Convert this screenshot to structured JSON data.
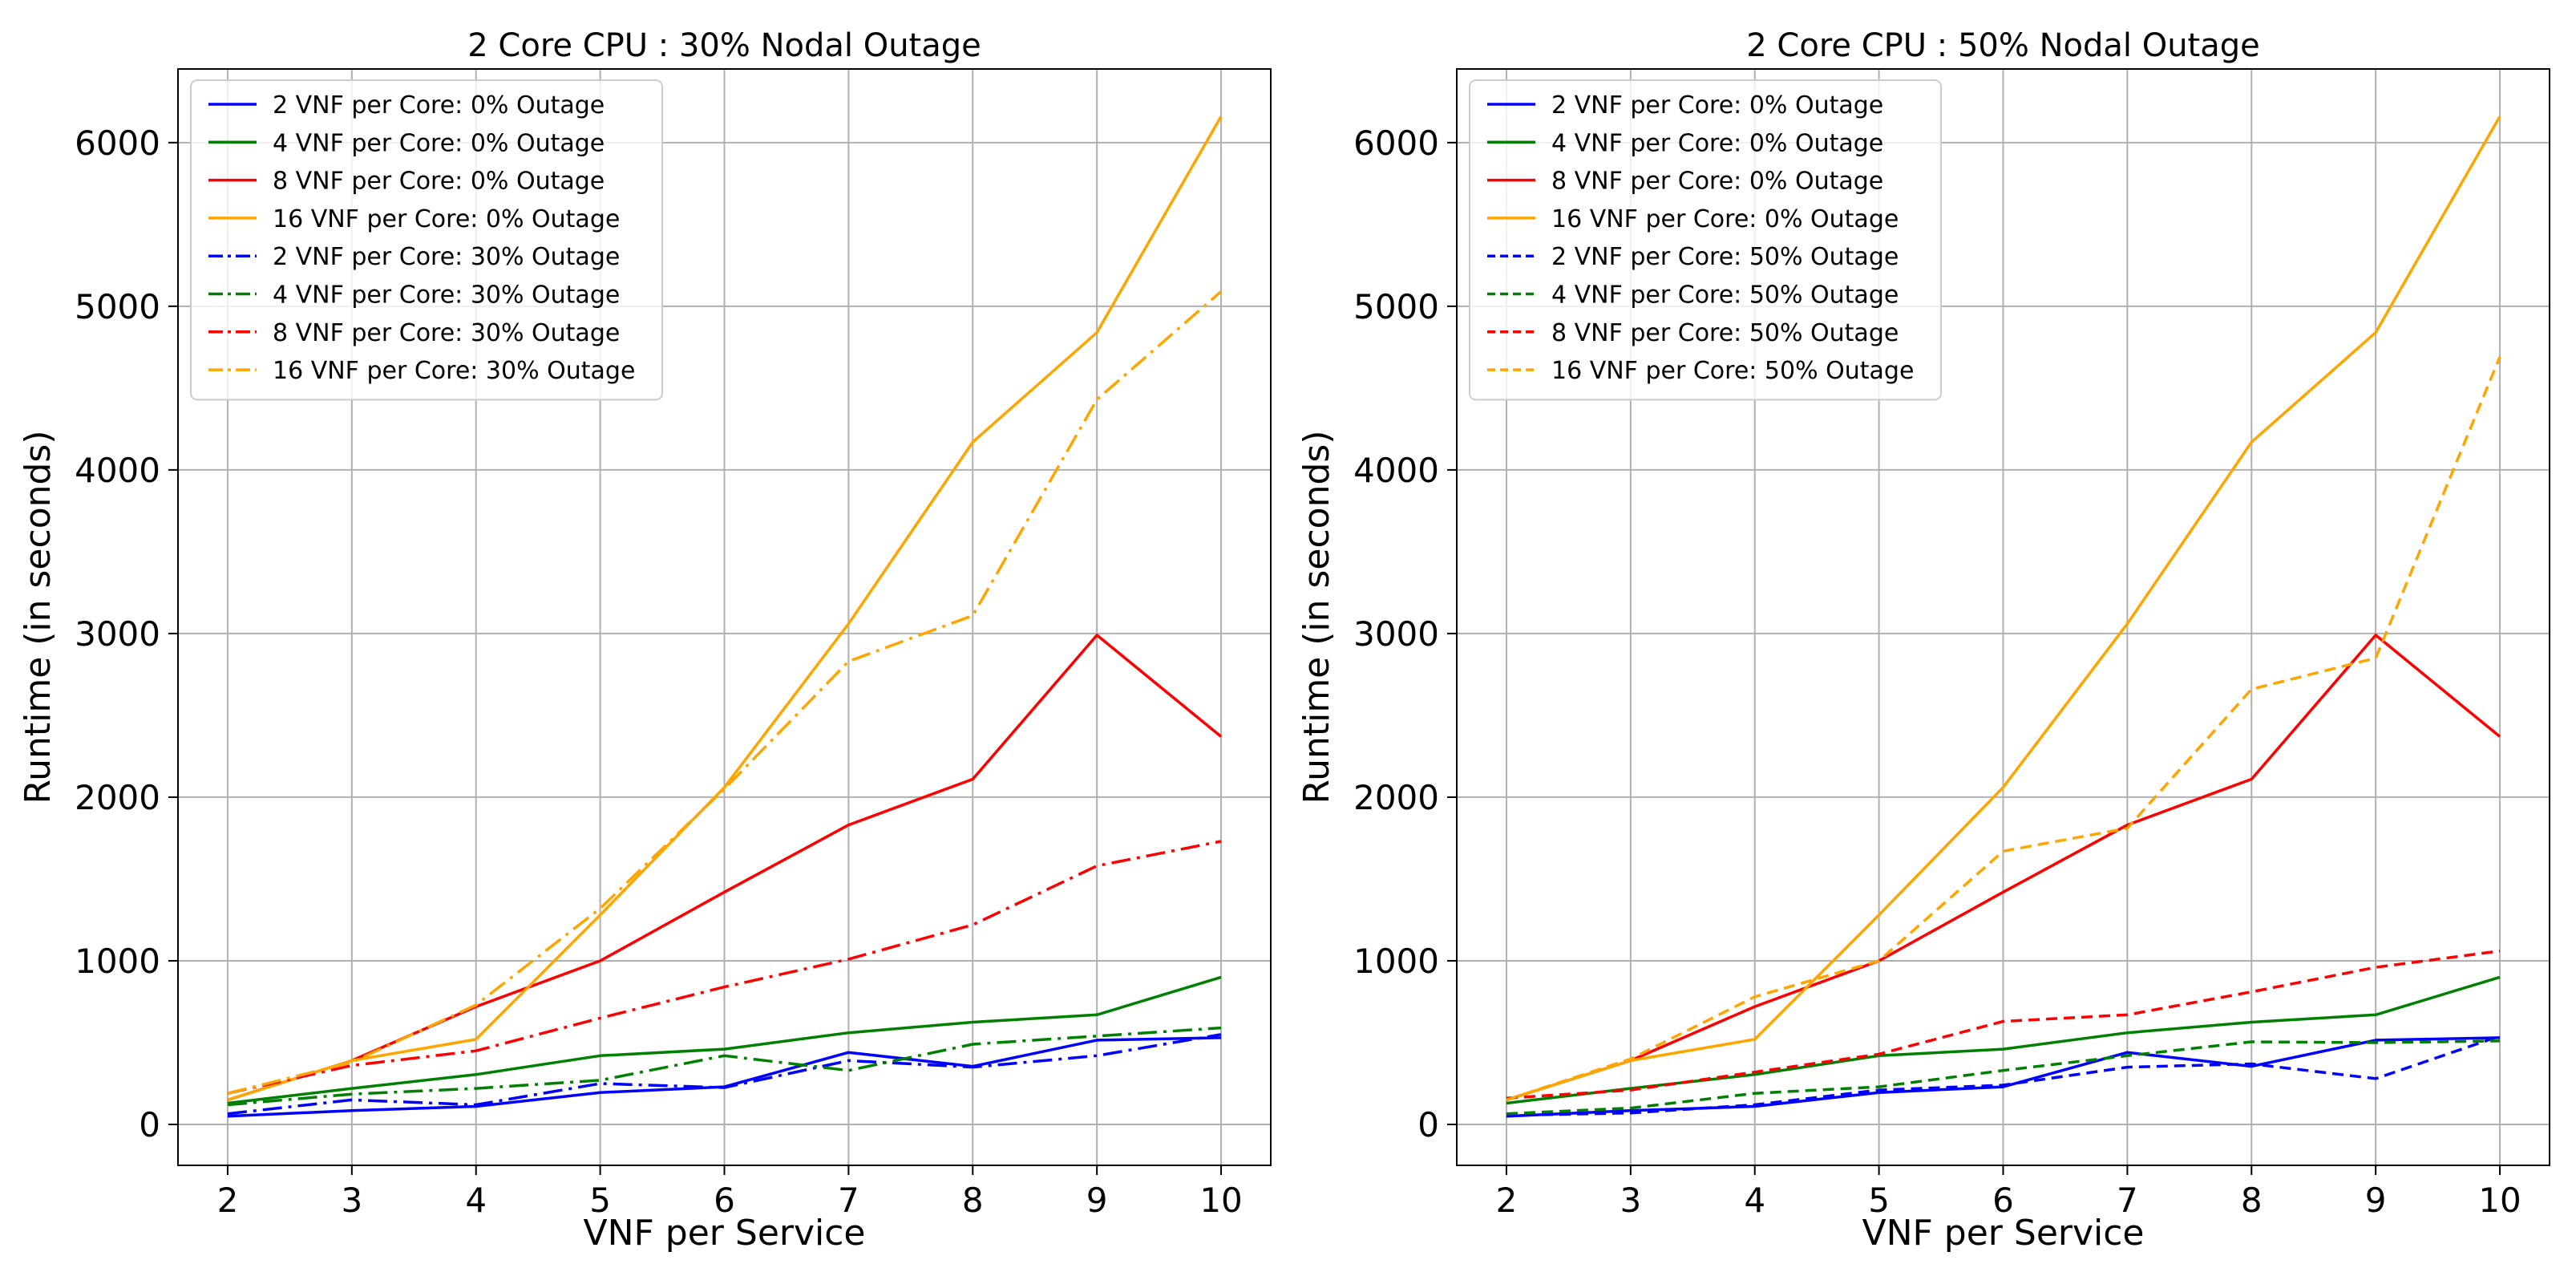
{
  "chart_data": [
    {
      "type": "line",
      "title": "2 Core CPU : 30% Nodal Outage",
      "xlabel": "VNF per Service",
      "ylabel": "Runtime (in seconds)",
      "x": [
        2,
        3,
        4,
        5,
        6,
        7,
        8,
        9,
        10
      ],
      "xlim": [
        1.6,
        10.4
      ],
      "ylim": [
        -250,
        6450
      ],
      "xticks": [
        2,
        3,
        4,
        5,
        6,
        7,
        8,
        9,
        10
      ],
      "yticks": [
        0,
        1000,
        2000,
        3000,
        4000,
        5000,
        6000
      ],
      "grid": true,
      "legend_position": "upper-left",
      "series": [
        {
          "name": "2 VNF per Core: 0% Outage",
          "color": "#0000ff",
          "style": "solid",
          "values": [
            50,
            85,
            110,
            195,
            230,
            440,
            355,
            515,
            530
          ]
        },
        {
          "name": "4 VNF per Core: 0% Outage",
          "color": "#008000",
          "style": "solid",
          "values": [
            130,
            220,
            305,
            420,
            460,
            560,
            625,
            670,
            900
          ]
        },
        {
          "name": "8 VNF per Core: 0% Outage",
          "color": "#ff0000",
          "style": "solid",
          "values": [
            150,
            390,
            720,
            1000,
            1420,
            1830,
            2110,
            2990,
            2370
          ]
        },
        {
          "name": "16 VNF per Core: 0% Outage",
          "color": "#ffa500",
          "style": "solid",
          "values": [
            150,
            390,
            520,
            1280,
            2060,
            3060,
            4170,
            4840,
            6160
          ]
        },
        {
          "name": "2 VNF per Core: 30% Outage",
          "color": "#0000ff",
          "style": "dashdot",
          "values": [
            65,
            150,
            120,
            250,
            225,
            390,
            350,
            420,
            550
          ]
        },
        {
          "name": "4 VNF per Core: 30% Outage",
          "color": "#008000",
          "style": "dashdot",
          "values": [
            120,
            185,
            220,
            270,
            420,
            330,
            490,
            540,
            590
          ]
        },
        {
          "name": "8 VNF per Core: 30% Outage",
          "color": "#ff0000",
          "style": "dashdot",
          "values": [
            190,
            360,
            450,
            650,
            840,
            1010,
            1220,
            1580,
            1730
          ]
        },
        {
          "name": "16 VNF per Core: 30% Outage",
          "color": "#ffa500",
          "style": "dashdot",
          "values": [
            190,
            380,
            730,
            1320,
            2050,
            2830,
            3110,
            4430,
            5090
          ]
        }
      ]
    },
    {
      "type": "line",
      "title": "2 Core CPU : 50% Nodal Outage",
      "xlabel": "VNF per Service",
      "ylabel": "Runtime (in seconds)",
      "x": [
        2,
        3,
        4,
        5,
        6,
        7,
        8,
        9,
        10
      ],
      "xlim": [
        1.6,
        10.4
      ],
      "ylim": [
        -250,
        6450
      ],
      "xticks": [
        2,
        3,
        4,
        5,
        6,
        7,
        8,
        9,
        10
      ],
      "yticks": [
        0,
        1000,
        2000,
        3000,
        4000,
        5000,
        6000
      ],
      "grid": true,
      "legend_position": "upper-left",
      "series": [
        {
          "name": "2 VNF per Core: 0% Outage",
          "color": "#0000ff",
          "style": "solid",
          "values": [
            50,
            85,
            110,
            195,
            230,
            440,
            355,
            515,
            530
          ]
        },
        {
          "name": "4 VNF per Core: 0% Outage",
          "color": "#008000",
          "style": "solid",
          "values": [
            130,
            220,
            305,
            420,
            460,
            560,
            625,
            670,
            900
          ]
        },
        {
          "name": "8 VNF per Core: 0% Outage",
          "color": "#ff0000",
          "style": "solid",
          "values": [
            150,
            390,
            720,
            1000,
            1420,
            1830,
            2110,
            2990,
            2370
          ]
        },
        {
          "name": "16 VNF per Core: 0% Outage",
          "color": "#ffa500",
          "style": "solid",
          "values": [
            150,
            390,
            520,
            1280,
            2060,
            3060,
            4170,
            4840,
            6160
          ]
        },
        {
          "name": "2 VNF per Core: 50% Outage",
          "color": "#0000ff",
          "style": "dashed",
          "values": [
            55,
            70,
            120,
            210,
            240,
            350,
            370,
            280,
            540
          ]
        },
        {
          "name": "4 VNF per Core: 50% Outage",
          "color": "#008000",
          "style": "dashed",
          "values": [
            65,
            100,
            190,
            230,
            330,
            420,
            505,
            500,
            510
          ]
        },
        {
          "name": "8 VNF per Core: 50% Outage",
          "color": "#ff0000",
          "style": "dashed",
          "values": [
            160,
            210,
            320,
            430,
            630,
            670,
            810,
            960,
            1060
          ]
        },
        {
          "name": "16 VNF per Core: 50% Outage",
          "color": "#ffa500",
          "style": "dashed",
          "values": [
            150,
            400,
            780,
            1000,
            1670,
            1810,
            2660,
            2850,
            4690
          ]
        }
      ]
    }
  ]
}
